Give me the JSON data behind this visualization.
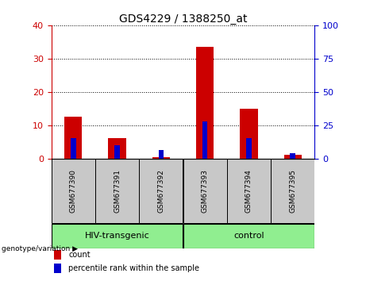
{
  "title": "GDS4229 / 1388250_at",
  "samples": [
    "GSM677390",
    "GSM677391",
    "GSM677392",
    "GSM677393",
    "GSM677394",
    "GSM677395"
  ],
  "count_values": [
    12.5,
    6.0,
    0.3,
    33.5,
    15.0,
    1.0
  ],
  "percentile_values": [
    6.0,
    4.0,
    2.5,
    11.0,
    6.0,
    1.5
  ],
  "left_ylim": [
    0,
    40
  ],
  "right_ylim": [
    0,
    100
  ],
  "left_yticks": [
    0,
    10,
    20,
    30,
    40
  ],
  "right_yticks": [
    0,
    25,
    50,
    75,
    100
  ],
  "count_color": "#cc0000",
  "percentile_color": "#0000cc",
  "background_plot": "#ffffff",
  "background_xtick": "#c8c8c8",
  "background_group": "#90ee90",
  "groups": [
    {
      "label": "HIV-transgenic",
      "span": [
        0,
        3
      ]
    },
    {
      "label": "control",
      "span": [
        3,
        6
      ]
    }
  ],
  "group_label": "genotype/variation",
  "legend_items": [
    {
      "label": "count",
      "color": "#cc0000"
    },
    {
      "label": "percentile rank within the sample",
      "color": "#0000cc"
    }
  ],
  "left_tick_color": "#cc0000",
  "right_tick_color": "#0000cc",
  "title_fontsize": 10,
  "red_bar_width": 0.4,
  "blue_bar_width": 0.12
}
